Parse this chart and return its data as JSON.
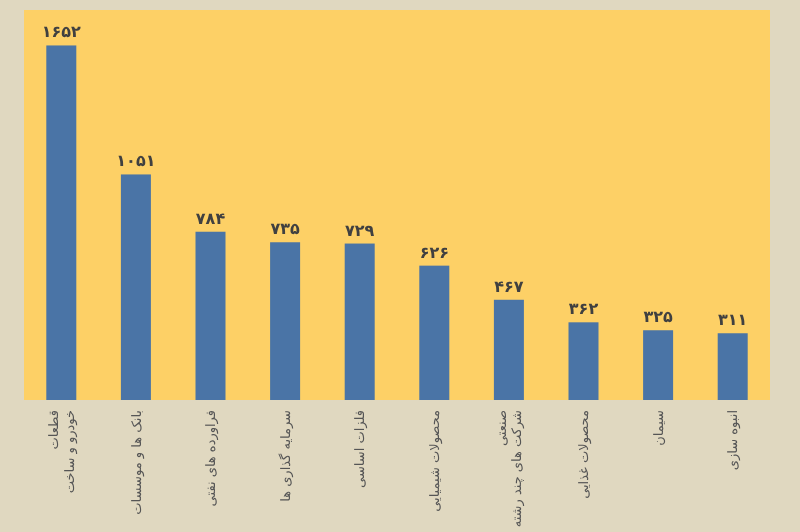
{
  "chart_data": {
    "type": "bar",
    "categories": [
      "خودرو و ساخت قطعات",
      "بانک ها و موسسات",
      "فراورده های نفتی",
      "سرمایه گذاری ها",
      "فلزات اساسی",
      "محصولات شیمیایی",
      "شرکت های چند رشته صنعتی",
      "محصولات غذایی",
      "سیمان",
      "انبوه سازی"
    ],
    "values": [
      1652,
      1051,
      784,
      735,
      729,
      626,
      467,
      362,
      325,
      311
    ],
    "value_labels": [
      "۱۶۵۲",
      "۱۰۵۱",
      "۷۸۴",
      "۷۳۵",
      "۷۲۹",
      "۶۲۶",
      "۴۶۷",
      "۳۶۲",
      "۳۲۵",
      "۳۱۱"
    ],
    "color": "#4a74a6"
  }
}
